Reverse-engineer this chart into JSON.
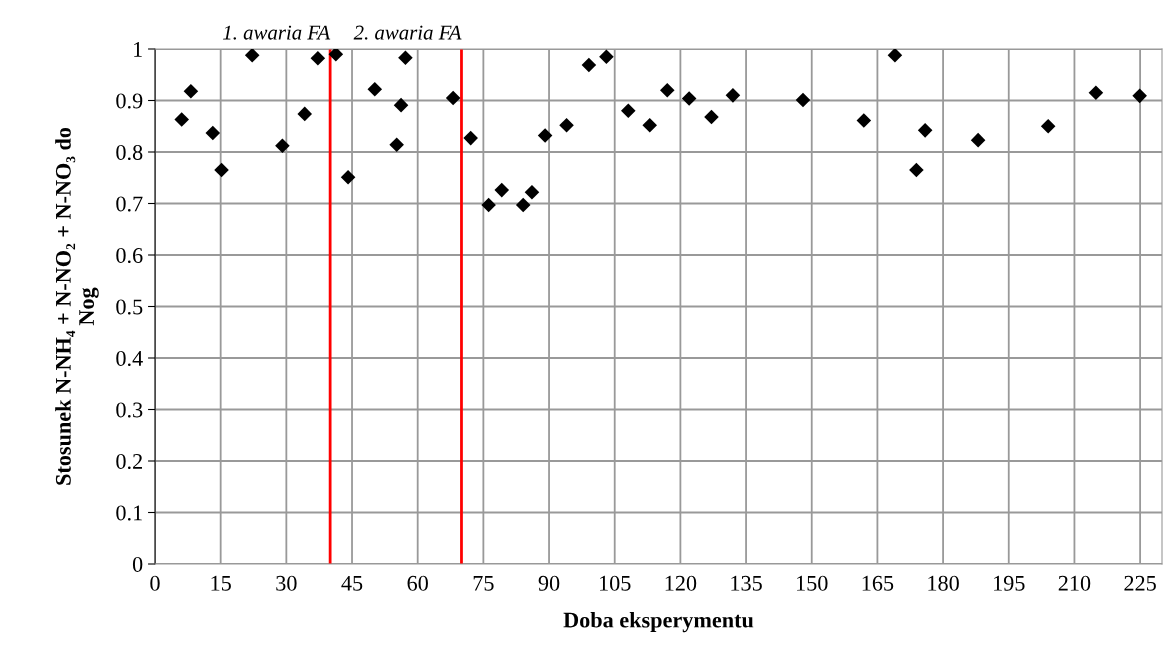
{
  "chart_data": {
    "type": "scatter",
    "xlabel": "Doba eksperymentu",
    "ylabel": "Stosunek N-NH₄ + N-NO₂ + N-NO₃ do\nNog",
    "x": [
      6.1,
      8.2,
      13.2,
      15.2,
      22.2,
      29.1,
      34.2,
      37.2,
      41.3,
      44.1,
      50.2,
      55.2,
      56.2,
      57.2,
      68.1,
      72.1,
      76.2,
      79.2,
      84.1,
      86.1,
      89.1,
      94.0,
      99.1,
      103.1,
      108.1,
      113.0,
      117.0,
      122.0,
      127.1,
      132.0,
      148.0,
      161.9,
      169.0,
      173.9,
      175.9,
      188.0,
      204.0,
      214.9,
      224.9
    ],
    "series": [
      {
        "color": "#000000",
        "values": [
          0.863,
          0.918,
          0.837,
          0.765,
          0.988,
          0.812,
          0.874,
          0.982,
          0.99,
          0.751,
          0.922,
          0.814,
          0.891,
          0.983,
          0.905,
          0.827,
          0.697,
          0.726,
          0.697,
          0.722,
          0.832,
          0.852,
          0.969,
          0.985,
          0.88,
          0.852,
          0.92,
          0.904,
          0.868,
          0.91,
          0.901,
          0.861,
          0.988,
          0.765,
          0.842,
          0.823,
          0.85,
          0.915,
          0.909
        ]
      }
    ],
    "marker": "diamond",
    "xlim": [
      0,
      230
    ],
    "xticks": [
      0,
      15,
      30,
      45,
      60,
      75,
      90,
      105,
      120,
      135,
      150,
      165,
      180,
      195,
      210,
      225
    ],
    "ylim": [
      0,
      1
    ],
    "yticks": [
      0,
      0.1,
      0.2,
      0.3,
      0.4,
      0.5,
      0.6,
      0.7,
      0.8,
      0.9,
      1
    ],
    "grid": true,
    "ref_lines": [
      {
        "axis": "x",
        "value": 40,
        "label": "1. awaria FA",
        "color": "#ff0000"
      },
      {
        "axis": "x",
        "value": 70,
        "label": "2. awaria FA",
        "color": "#ff0000"
      }
    ]
  }
}
